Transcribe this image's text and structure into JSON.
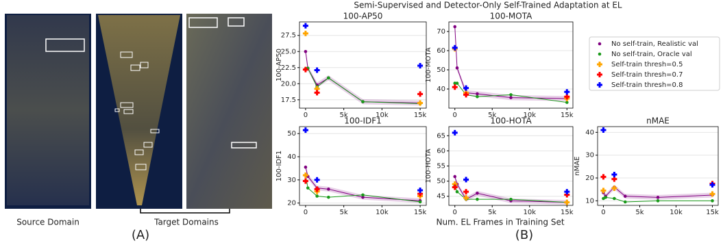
{
  "figure": {
    "suptitle": "Semi-Supervised and Detector-Only Self-Trained Adaptation at EL",
    "xlabel": "Num. EL Frames in Training Set",
    "source_label": "Source Domain",
    "target_label": "Target Domains",
    "panel_a": "(A)",
    "panel_b": "(B)"
  },
  "chart_data": [
    {
      "type": "line",
      "title": "100-AP50",
      "ylabel": "100-AP50",
      "xlim": [
        -800,
        15800
      ],
      "ylim": [
        16.2,
        29.6
      ],
      "xticks": [
        0,
        {
          "value": 5000,
          "label": "5k"
        },
        {
          "value": 10000,
          "label": "10k"
        },
        {
          "value": 15000,
          "label": "15k"
        }
      ],
      "yticks": [
        17.5,
        {
          "value": 20,
          "label": "20.0"
        },
        {
          "value": 22.5,
          "label": "22.5"
        },
        {
          "value": 25,
          "label": "25.0"
        },
        27.5
      ],
      "grid": true,
      "series": [
        {
          "name": "No self-train, Realistic val",
          "color": "#800080",
          "marker": "circle",
          "x": [
            0,
            300,
            1500,
            3000,
            7500,
            15000
          ],
          "values": [
            25.0,
            22.4,
            19.8,
            20.9,
            17.2,
            17.0
          ]
        },
        {
          "name": "No self-train, Oracle val",
          "color": "#1a9a1a",
          "marker": "circle",
          "x": [
            0,
            300,
            1500,
            3000,
            7500,
            15000
          ],
          "values": [
            22.3,
            22.4,
            19.5,
            20.9,
            17.2,
            16.9
          ]
        },
        {
          "name": "Self-train thresh=0.5",
          "color": "#ffa500",
          "marker": "plus",
          "x": [
            0,
            1500,
            15000
          ],
          "values": [
            27.8,
            19.2,
            17.0
          ]
        },
        {
          "name": "Self-train thresh=0.7",
          "color": "#ff0000",
          "marker": "plus",
          "x": [
            0,
            1500,
            15000
          ],
          "values": [
            22.2,
            18.6,
            18.4
          ]
        },
        {
          "name": "Self-train thresh=0.8",
          "color": "#0000ff",
          "marker": "plus",
          "x": [
            0,
            1500,
            15000
          ],
          "values": [
            29.0,
            22.1,
            22.8
          ]
        }
      ]
    },
    {
      "type": "line",
      "title": "100-MOTA",
      "ylabel": "100-MOTA",
      "xlim": [
        -800,
        15800
      ],
      "ylim": [
        30,
        75
      ],
      "xticks": [
        0,
        {
          "value": 5000,
          "label": "5k"
        },
        {
          "value": 10000,
          "label": "10k"
        },
        {
          "value": 15000,
          "label": "15k"
        }
      ],
      "yticks": [
        40,
        50,
        60,
        70
      ],
      "grid": true,
      "series": [
        {
          "name": "No self-train, Realistic val",
          "color": "#800080",
          "marker": "circle",
          "x": [
            0,
            300,
            1500,
            3000,
            7500,
            15000
          ],
          "values": [
            72.5,
            51,
            38,
            37.5,
            35.5,
            35
          ]
        },
        {
          "name": "No self-train, Oracle val",
          "color": "#1a9a1a",
          "marker": "circle",
          "x": [
            0,
            300,
            1500,
            3000,
            7500,
            15000
          ],
          "values": [
            43,
            43,
            37,
            36,
            37,
            33
          ]
        },
        {
          "name": "Self-train thresh=0.5",
          "color": "#ffa500",
          "marker": "plus",
          "x": [
            0,
            1500,
            15000
          ],
          "values": [
            61,
            38,
            35
          ]
        },
        {
          "name": "Self-train thresh=0.7",
          "color": "#ff0000",
          "marker": "plus",
          "x": [
            0,
            1500,
            15000
          ],
          "values": [
            41,
            37,
            36
          ]
        },
        {
          "name": "Self-train thresh=0.8",
          "color": "#0000ff",
          "marker": "plus",
          "x": [
            0,
            1500,
            15000
          ],
          "values": [
            61.5,
            40.5,
            38.5
          ]
        }
      ]
    },
    {
      "type": "line",
      "title": "100-IDF1",
      "ylabel": "100-IDF1",
      "xlim": [
        -800,
        15800
      ],
      "ylim": [
        19,
        53
      ],
      "xticks": [
        0,
        {
          "value": 5000,
          "label": "5k"
        },
        {
          "value": 10000,
          "label": "10k"
        },
        {
          "value": 15000,
          "label": "15k"
        }
      ],
      "yticks": [
        20,
        30,
        40,
        50
      ],
      "grid": true,
      "series": [
        {
          "name": "No self-train, Realistic val",
          "color": "#800080",
          "marker": "circle",
          "x": [
            0,
            300,
            1500,
            3000,
            7500,
            15000
          ],
          "values": [
            35.5,
            31.5,
            26.5,
            26,
            22.5,
            21
          ]
        },
        {
          "name": "No self-train, Oracle val",
          "color": "#1a9a1a",
          "marker": "circle",
          "x": [
            0,
            300,
            1500,
            3000,
            7500,
            15000
          ],
          "values": [
            32,
            26.5,
            23,
            22.5,
            23.5,
            20.5
          ]
        },
        {
          "name": "Self-train thresh=0.5",
          "color": "#ffa500",
          "marker": "plus",
          "x": [
            0,
            1500,
            15000
          ],
          "values": [
            32,
            25,
            23
          ]
        },
        {
          "name": "Self-train thresh=0.7",
          "color": "#ff0000",
          "marker": "plus",
          "x": [
            0,
            1500,
            15000
          ],
          "values": [
            29.5,
            26,
            24
          ]
        },
        {
          "name": "Self-train thresh=0.8",
          "color": "#0000ff",
          "marker": "plus",
          "x": [
            0,
            1500,
            15000
          ],
          "values": [
            51.5,
            30,
            25.5
          ]
        }
      ]
    },
    {
      "type": "line",
      "title": "100-HOTA",
      "ylabel": "100-HOTA",
      "xlim": [
        -800,
        15800
      ],
      "ylim": [
        42,
        68
      ],
      "xticks": [
        0,
        {
          "value": 5000,
          "label": "5k"
        },
        {
          "value": 10000,
          "label": "10k"
        },
        {
          "value": 15000,
          "label": "15k"
        }
      ],
      "yticks": [
        45,
        50,
        55,
        60,
        65
      ],
      "grid": true,
      "series": [
        {
          "name": "No self-train, Realistic val",
          "color": "#800080",
          "marker": "circle",
          "x": [
            0,
            300,
            1500,
            3000,
            7500,
            15000
          ],
          "values": [
            51.5,
            49,
            44,
            46,
            43.5,
            43
          ]
        },
        {
          "name": "No self-train, Oracle val",
          "color": "#1a9a1a",
          "marker": "circle",
          "x": [
            0,
            300,
            1500,
            3000,
            7500,
            15000
          ],
          "values": [
            48.5,
            46.5,
            44,
            44,
            44,
            43
          ]
        },
        {
          "name": "Self-train thresh=0.5",
          "color": "#ffa500",
          "marker": "plus",
          "x": [
            0,
            1500,
            15000
          ],
          "values": [
            49,
            44.5,
            43
          ]
        },
        {
          "name": "Self-train thresh=0.7",
          "color": "#ff0000",
          "marker": "plus",
          "x": [
            0,
            1500,
            15000
          ],
          "values": [
            48,
            46.5,
            45.5
          ]
        },
        {
          "name": "Self-train thresh=0.8",
          "color": "#0000ff",
          "marker": "plus",
          "x": [
            0,
            1500,
            15000
          ],
          "values": [
            66,
            50.5,
            46.5
          ]
        }
      ]
    },
    {
      "type": "line",
      "title": "nMAE",
      "ylabel": "nMAE",
      "xlim": [
        -800,
        15800
      ],
      "ylim": [
        8,
        42.5
      ],
      "xticks": [
        0,
        {
          "value": 5000,
          "label": "5k"
        },
        {
          "value": 10000,
          "label": "10k"
        },
        {
          "value": 15000,
          "label": "15k"
        }
      ],
      "yticks": [
        10,
        20,
        30,
        40
      ],
      "grid": true,
      "series": [
        {
          "name": "No self-train, Realistic val",
          "color": "#800080",
          "marker": "circle",
          "x": [
            0,
            300,
            1500,
            3000,
            7500,
            15000
          ],
          "values": [
            13.5,
            12,
            16,
            12,
            11.5,
            12.5
          ]
        },
        {
          "name": "No self-train, Oracle val",
          "color": "#1a9a1a",
          "marker": "circle",
          "x": [
            0,
            300,
            1500,
            3000,
            7500,
            15000
          ],
          "values": [
            11,
            11.5,
            11,
            9.5,
            10,
            10
          ]
        },
        {
          "name": "Self-train thresh=0.5",
          "color": "#ffa500",
          "marker": "plus",
          "x": [
            0,
            1500,
            15000
          ],
          "values": [
            14.5,
            15.5,
            13
          ]
        },
        {
          "name": "Self-train thresh=0.7",
          "color": "#ff0000",
          "marker": "plus",
          "x": [
            0,
            1500,
            15000
          ],
          "values": [
            20.5,
            19.5,
            17.5
          ]
        },
        {
          "name": "Self-train thresh=0.8",
          "color": "#0000ff",
          "marker": "plus",
          "x": [
            0,
            1500,
            15000
          ],
          "values": [
            41,
            21.5,
            17
          ]
        }
      ]
    }
  ]
}
